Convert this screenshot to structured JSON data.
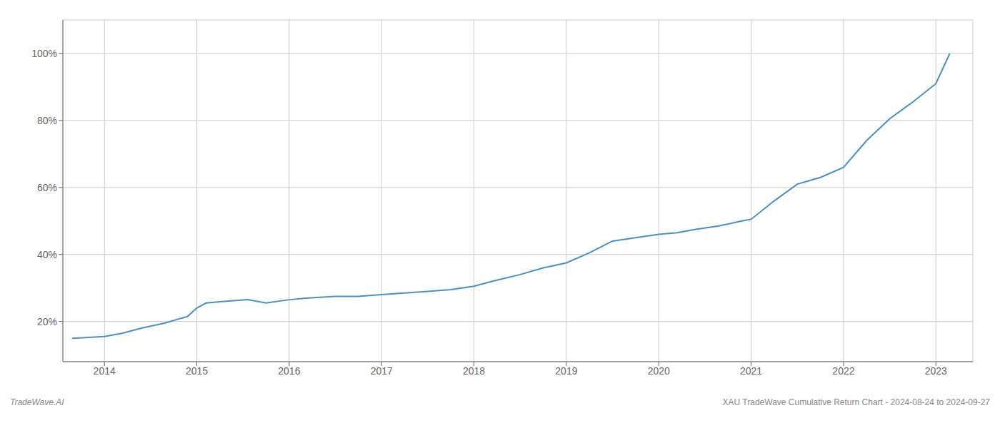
{
  "chart_data": {
    "type": "line",
    "x": [
      2013.65,
      2014.0,
      2014.2,
      2014.4,
      2014.65,
      2014.9,
      2015.0,
      2015.1,
      2015.3,
      2015.55,
      2015.75,
      2016.0,
      2016.2,
      2016.5,
      2016.75,
      2017.0,
      2017.25,
      2017.5,
      2017.75,
      2018.0,
      2018.2,
      2018.5,
      2018.75,
      2019.0,
      2019.25,
      2019.5,
      2019.75,
      2020.0,
      2020.2,
      2020.4,
      2020.65,
      2020.9,
      2021.0,
      2021.25,
      2021.5,
      2021.75,
      2022.0,
      2022.25,
      2022.5,
      2022.75,
      2023.0,
      2023.15
    ],
    "values": [
      15.0,
      15.5,
      16.5,
      18.0,
      19.5,
      21.5,
      24.0,
      25.5,
      26.0,
      26.5,
      25.5,
      26.5,
      27.0,
      27.5,
      27.5,
      28.0,
      28.5,
      29.0,
      29.5,
      30.5,
      32.0,
      34.0,
      36.0,
      37.5,
      40.5,
      44.0,
      45.0,
      46.0,
      46.5,
      47.5,
      48.5,
      50.0,
      50.5,
      56.0,
      61.0,
      63.0,
      66.0,
      74.0,
      80.5,
      85.5,
      91.0,
      100.0
    ],
    "color": "#4a90c4",
    "xlim": [
      2013.55,
      2023.4
    ],
    "xticks": [
      2014,
      2015,
      2016,
      2017,
      2018,
      2019,
      2020,
      2021,
      2022,
      2023
    ],
    "ylim": [
      8,
      110
    ],
    "yticks": [
      {
        "value": 20,
        "label": "20%"
      },
      {
        "value": 40,
        "label": "40%"
      },
      {
        "value": 60,
        "label": "60%"
      },
      {
        "value": 80,
        "label": "80%"
      },
      {
        "value": 100,
        "label": "100%"
      }
    ],
    "grid": true,
    "annotations": [
      "TradeWave.AI",
      "XAU TradeWave Cumulative Return Chart - 2024-08-24 to 2024-09-27"
    ]
  }
}
